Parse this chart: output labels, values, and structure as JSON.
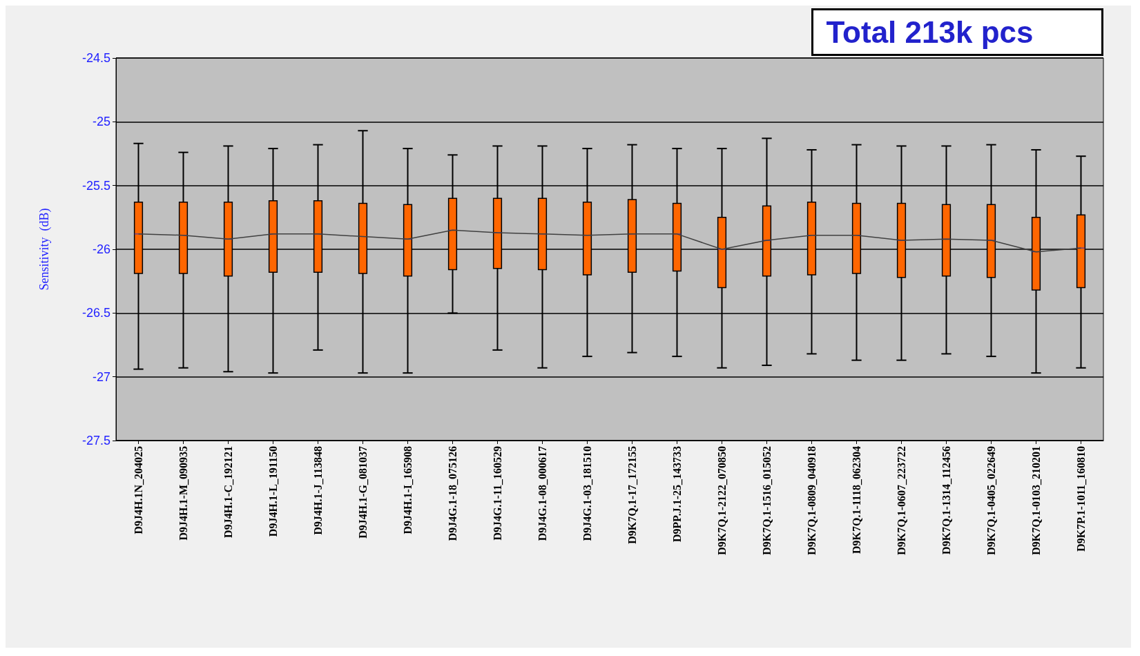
{
  "chart_data": {
    "type": "box",
    "ylabel": "Sensitivity  (dB)",
    "annotations": [
      "Total 213k pcs"
    ],
    "categories": [
      "D9J4H.1N_204025",
      "D9J4H.1-M_090935",
      "D9J4H.1-C_192121",
      "D9J4H.1-L_191150",
      "D9J4H.1-J_113848",
      "D9J4H.1-G_081037",
      "D9J4H.1-I_165908",
      "D9J4G.1-18_075126",
      "D9J4G.1-11_160529",
      "D9J4G.1-08_000617",
      "D9J4G.1-03_181510",
      "D9K7Q.1-17_172155",
      "D9PP.J.1-25_143733",
      "D9K7Q.1-2122_070850",
      "D9K7Q.1-1516_015052",
      "D9K7Q.1-0809_040918",
      "D9K7Q.1-1118_062304",
      "D9K7Q.1-0607_223722",
      "D9K7Q.1-1314_112456",
      "D9K7Q.1-0405_022649",
      "D9K7Q.1-0103_210201",
      "D9K7P.1-1011_160810"
    ],
    "ylim": [
      -27.5,
      -24.5
    ],
    "yticks": [
      -27.5,
      -27,
      -26.5,
      -26,
      -25.5,
      -25,
      -24.5
    ],
    "grid": "y",
    "marker": "none",
    "series": [
      {
        "color": "#ff6600",
        "boxes": [
          {
            "low": -26.94,
            "q1": -26.19,
            "median": -25.88,
            "q3": -25.63,
            "high": -25.17
          },
          {
            "low": -26.93,
            "q1": -26.19,
            "median": -25.89,
            "q3": -25.63,
            "high": -25.24
          },
          {
            "low": -26.96,
            "q1": -26.21,
            "median": -25.92,
            "q3": -25.63,
            "high": -25.19
          },
          {
            "low": -26.97,
            "q1": -26.18,
            "median": -25.88,
            "q3": -25.62,
            "high": -25.21
          },
          {
            "low": -26.79,
            "q1": -26.18,
            "median": -25.88,
            "q3": -25.62,
            "high": -25.18
          },
          {
            "low": -26.97,
            "q1": -26.19,
            "median": -25.9,
            "q3": -25.64,
            "high": -25.07
          },
          {
            "low": -26.97,
            "q1": -26.21,
            "median": -25.92,
            "q3": -25.65,
            "high": -25.21
          },
          {
            "low": -26.5,
            "q1": -26.16,
            "median": -25.85,
            "q3": -25.6,
            "high": -25.26
          },
          {
            "low": -26.79,
            "q1": -26.15,
            "median": -25.87,
            "q3": -25.6,
            "high": -25.19
          },
          {
            "low": -26.93,
            "q1": -26.16,
            "median": -25.88,
            "q3": -25.6,
            "high": -25.19
          },
          {
            "low": -26.84,
            "q1": -26.2,
            "median": -25.89,
            "q3": -25.63,
            "high": -25.21
          },
          {
            "low": -26.81,
            "q1": -26.18,
            "median": -25.88,
            "q3": -25.61,
            "high": -25.18
          },
          {
            "low": -26.84,
            "q1": -26.17,
            "median": -25.88,
            "q3": -25.64,
            "high": -25.21
          },
          {
            "low": -26.93,
            "q1": -26.3,
            "median": -26.0,
            "q3": -25.75,
            "high": -25.21
          },
          {
            "low": -26.91,
            "q1": -26.21,
            "median": -25.93,
            "q3": -25.66,
            "high": -25.13
          },
          {
            "low": -26.82,
            "q1": -26.2,
            "median": -25.89,
            "q3": -25.63,
            "high": -25.22
          },
          {
            "low": -26.87,
            "q1": -26.19,
            "median": -25.89,
            "q3": -25.64,
            "high": -25.18
          },
          {
            "low": -26.87,
            "q1": -26.22,
            "median": -25.93,
            "q3": -25.64,
            "high": -25.19
          },
          {
            "low": -26.82,
            "q1": -26.21,
            "median": -25.92,
            "q3": -25.65,
            "high": -25.19
          },
          {
            "low": -26.84,
            "q1": -26.22,
            "median": -25.93,
            "q3": -25.65,
            "high": -25.18
          },
          {
            "low": -26.97,
            "q1": -26.32,
            "median": -26.02,
            "q3": -25.75,
            "high": -25.22
          },
          {
            "low": -26.93,
            "q1": -26.3,
            "median": -25.99,
            "q3": -25.73,
            "high": -25.27
          }
        ]
      },
      {
        "type": "line",
        "color": "#404040",
        "values": [
          -25.88,
          -25.89,
          -25.92,
          -25.88,
          -25.88,
          -25.9,
          -25.92,
          -25.85,
          -25.87,
          -25.88,
          -25.89,
          -25.88,
          -25.88,
          -26.0,
          -25.93,
          -25.89,
          -25.89,
          -25.93,
          -25.92,
          -25.93,
          -26.02,
          -25.99
        ]
      }
    ]
  }
}
